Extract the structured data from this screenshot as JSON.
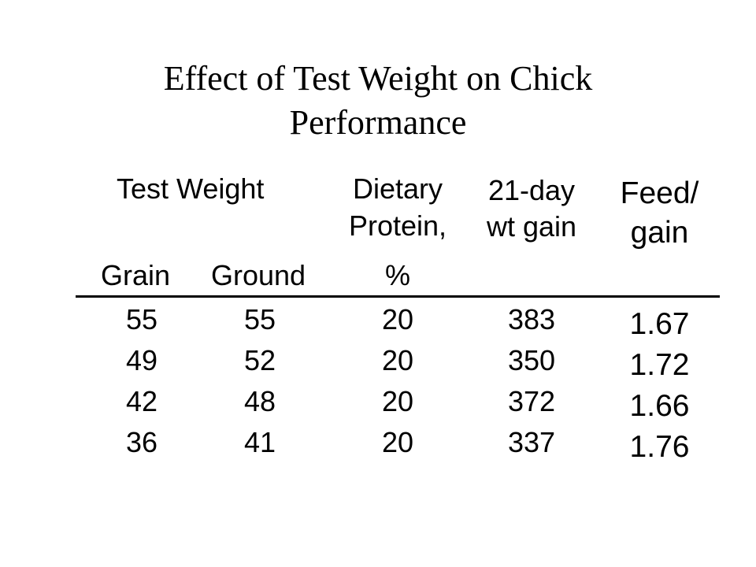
{
  "slide": {
    "title_line1": "Effect of Test Weight on Chick",
    "title_line2": "Performance"
  },
  "table": {
    "group_header": "Test Weight",
    "headers": {
      "grain": "Grain",
      "ground": "Ground",
      "dietary_line1": "Dietary",
      "dietary_line2": "Protein,",
      "dietary_unit": "%",
      "gain_line1": "21-day",
      "gain_line2": "wt gain",
      "feed_line1": "Feed/",
      "feed_line2": "gain"
    },
    "rows": [
      {
        "grain": "55",
        "ground": "55",
        "protein": "20",
        "wt_gain": "383",
        "feed_gain": "1.67"
      },
      {
        "grain": "49",
        "ground": "52",
        "protein": "20",
        "wt_gain": "350",
        "feed_gain": "1.72"
      },
      {
        "grain": "42",
        "ground": "48",
        "protein": "20",
        "wt_gain": "372",
        "feed_gain": "1.66"
      },
      {
        "grain": "36",
        "ground": "41",
        "protein": "20",
        "wt_gain": "337",
        "feed_gain": "1.76"
      }
    ]
  }
}
